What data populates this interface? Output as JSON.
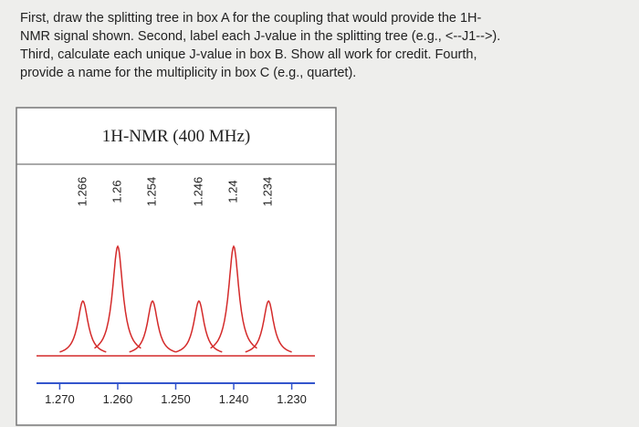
{
  "question": [
    "First, draw the splitting tree in box A for the coupling that would provide the 1H-",
    "NMR signal shown. Second, label each J-value in the splitting tree (e.g., <--J1-->).",
    "Third, calculate each unique J-value in box B. Show all work for credit. Fourth,",
    "provide a name for the multiplicity in box C (e.g., quartet)."
  ],
  "chart_data": {
    "type": "spectrum",
    "title": "1H-NMR (400 MHz)",
    "x": [
      1.266,
      1.26,
      1.254,
      1.246,
      1.24,
      1.234
    ],
    "values": [
      1,
      2,
      1,
      1,
      2,
      1
    ],
    "color": "#d42a2a",
    "xlim": [
      1.274,
      1.226
    ],
    "xticks": [
      {
        "value": 1.27,
        "label": "1.270"
      },
      {
        "value": 1.26,
        "label": "1.260"
      },
      {
        "value": 1.25,
        "label": "1.250"
      },
      {
        "value": 1.24,
        "label": "1.240"
      },
      {
        "value": 1.23,
        "label": "1.230"
      }
    ]
  }
}
